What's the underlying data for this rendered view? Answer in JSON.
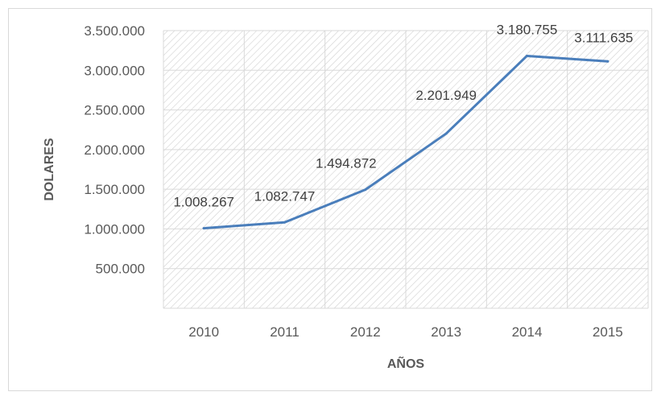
{
  "chart_data": {
    "type": "line",
    "categories": [
      "2010",
      "2011",
      "2012",
      "2013",
      "2014",
      "2015"
    ],
    "series": [
      {
        "values": [
          1008267,
          1082747,
          1494872,
          2201949,
          3180755,
          3111635
        ],
        "color": "#4a7ebb"
      }
    ],
    "data_labels": [
      "1.008.267",
      "1.082.747",
      "1.494.872",
      "2.201.949",
      "3.180.755",
      "3.111.635"
    ],
    "title": "",
    "xlabel": "AÑOS",
    "ylabel": "DOLARES",
    "ylim": [
      0,
      3500000
    ],
    "yticks": [
      {
        "value": 500000,
        "label": "500.000"
      },
      {
        "value": 1000000,
        "label": "1.000.000"
      },
      {
        "value": 1500000,
        "label": "1.500.000"
      },
      {
        "value": 2000000,
        "label": "2.000.000"
      },
      {
        "value": 2500000,
        "label": "2.500.000"
      },
      {
        "value": 3000000,
        "label": "3.000.000"
      },
      {
        "value": 3500000,
        "label": "3.500.000"
      }
    ],
    "grid": true,
    "plot_fill": "hatched"
  }
}
